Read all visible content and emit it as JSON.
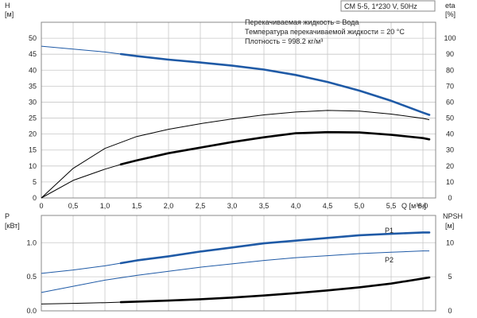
{
  "colors": {
    "blue": "#1f5aa6",
    "black": "#000000",
    "grid": "#c8c8c8"
  },
  "header": {
    "spec": "CM 5-5, 1*230 V, 50Hz"
  },
  "conditions": [
    "Перекачиваемая жидкость = Вода",
    "Температура перекачиваемой жидкости = 20 °C",
    "Плотность = 998.2 кг/м³"
  ],
  "chart_data": [
    {
      "id": "top",
      "type": "line",
      "grid": true,
      "xlim": [
        0,
        6.2
      ],
      "x_ticks": [
        "0",
        "0,5",
        "1,0",
        "1,5",
        "2,0",
        "2,5",
        "3,0",
        "3,5",
        "4,0",
        "4,5",
        "5,0",
        "5,5",
        "6,0"
      ],
      "x_tick_values": [
        0,
        0.5,
        1.0,
        1.5,
        2.0,
        2.5,
        3.0,
        3.5,
        4.0,
        4.5,
        5.0,
        5.5,
        6.0
      ],
      "xlabel": "Q [м³/ч]",
      "x_label_value": 6.2,
      "left_axis": {
        "label": "H",
        "unit": "[м]",
        "lim": [
          0,
          55
        ],
        "ticks": [
          "0",
          "5",
          "10",
          "15",
          "20",
          "25",
          "30",
          "35",
          "40",
          "45",
          "50"
        ],
        "tick_values": [
          0,
          5,
          10,
          15,
          20,
          25,
          30,
          35,
          40,
          45,
          50
        ]
      },
      "right_axis": {
        "label": "eta",
        "unit": "[%]",
        "lim": [
          0,
          110
        ],
        "ticks": [
          "0",
          "10",
          "20",
          "30",
          "40",
          "50",
          "60",
          "70",
          "80",
          "90",
          "100"
        ],
        "tick_values": [
          0,
          10,
          20,
          30,
          40,
          50,
          60,
          70,
          80,
          90,
          100
        ]
      },
      "series": [
        {
          "axis": "left",
          "color": "#1f5aa6",
          "x": [
            0,
            0.5,
            1.0,
            1.5,
            2.0,
            2.5,
            3.0,
            3.5,
            4.0,
            4.5,
            5.0,
            5.5,
            6.0,
            6.1
          ],
          "y": [
            47.5,
            46.6,
            45.7,
            44.4,
            43.3,
            42.4,
            41.4,
            40.2,
            38.5,
            36.3,
            33.6,
            30.4,
            26.7,
            26.0
          ],
          "bold_from_x": 1.25
        },
        {
          "axis": "right",
          "color": "#000000",
          "x": [
            0,
            0.5,
            1.0,
            1.5,
            2.0,
            2.5,
            3.0,
            3.5,
            4.0,
            4.5,
            5.0,
            5.5,
            6.0,
            6.1
          ],
          "y": [
            0,
            18.5,
            31,
            38.5,
            43,
            46.5,
            49.5,
            52,
            53.8,
            54.8,
            54.4,
            52.5,
            49.8,
            49.0
          ],
          "bold_from_x": 99
        },
        {
          "axis": "right",
          "color": "#000000",
          "x": [
            0,
            0.5,
            1.0,
            1.25,
            1.5,
            2.0,
            2.5,
            3.0,
            3.5,
            4.0,
            4.5,
            5.0,
            5.5,
            6.0,
            6.1
          ],
          "y": [
            0,
            11,
            18,
            21,
            23.5,
            28,
            31.5,
            35,
            38,
            40.5,
            41.2,
            41.0,
            39.5,
            37.5,
            36.7
          ],
          "bold_from_x": 1.25
        }
      ]
    },
    {
      "id": "bottom",
      "type": "line",
      "grid": true,
      "xlim": [
        0,
        6.2
      ],
      "x_tick_values": [
        0,
        0.5,
        1.0,
        1.5,
        2.0,
        2.5,
        3.0,
        3.5,
        4.0,
        4.5,
        5.0,
        5.5,
        6.0
      ],
      "left_axis": {
        "label": "P",
        "unit": "[кВт]",
        "lim": [
          0,
          1.4
        ],
        "ticks": [
          "0.0",
          "0.5",
          "1.0"
        ],
        "tick_values": [
          0,
          0.5,
          1.0
        ]
      },
      "right_axis": {
        "label": "NPSH",
        "unit": "[м]",
        "lim": [
          0,
          14
        ],
        "ticks": [
          "0",
          "5",
          "10"
        ],
        "tick_values": [
          0,
          5,
          10
        ]
      },
      "series": [
        {
          "name": "P1",
          "axis": "left",
          "color": "#1f5aa6",
          "x": [
            0,
            0.5,
            1.0,
            1.5,
            2.0,
            2.5,
            3.0,
            3.5,
            4.0,
            4.5,
            5.0,
            5.5,
            6.0,
            6.1
          ],
          "y": [
            0.55,
            0.6,
            0.66,
            0.74,
            0.8,
            0.87,
            0.93,
            0.99,
            1.03,
            1.07,
            1.11,
            1.13,
            1.15,
            1.15
          ],
          "bold_from_x": 1.25
        },
        {
          "name": "P2",
          "axis": "left",
          "color": "#1f5aa6",
          "x": [
            0,
            0.5,
            1.0,
            1.5,
            2.0,
            2.5,
            3.0,
            3.5,
            4.0,
            4.5,
            5.0,
            5.5,
            6.0,
            6.1
          ],
          "y": [
            0.27,
            0.36,
            0.45,
            0.52,
            0.58,
            0.64,
            0.69,
            0.74,
            0.78,
            0.81,
            0.84,
            0.86,
            0.88,
            0.88
          ],
          "bold_from_x": 99
        },
        {
          "axis": "right",
          "color": "#000000",
          "x": [
            0,
            0.5,
            1.0,
            1.5,
            2.0,
            2.5,
            3.0,
            3.5,
            4.0,
            4.5,
            5.0,
            5.5,
            6.0,
            6.1
          ],
          "y": [
            1.0,
            1.1,
            1.2,
            1.35,
            1.5,
            1.7,
            1.95,
            2.25,
            2.6,
            3.0,
            3.45,
            4.0,
            4.75,
            4.9
          ],
          "bold_from_x": 1.25
        }
      ]
    }
  ]
}
